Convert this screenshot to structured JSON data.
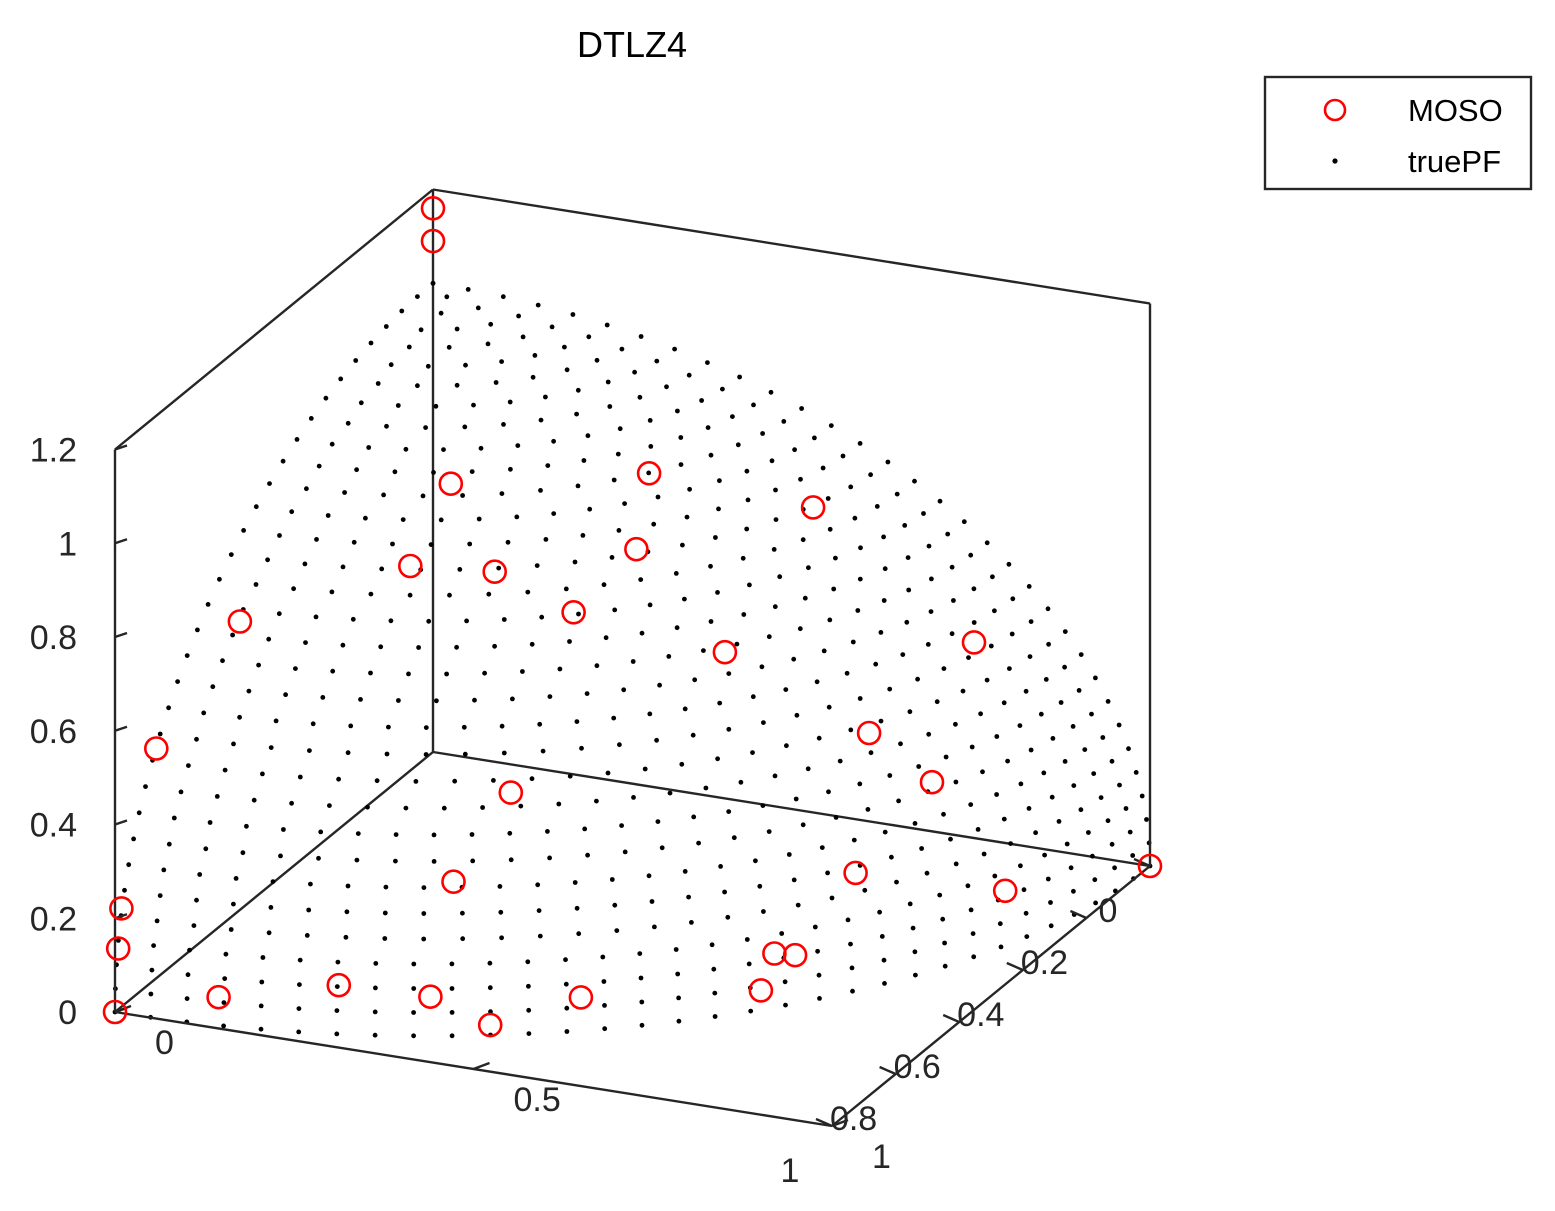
{
  "chart_data": {
    "type": "scatter",
    "title": "DTLZ4",
    "axes": {
      "x": {
        "range": [
          0,
          1
        ],
        "ticks": [
          0,
          0.2,
          0.4,
          0.6,
          0.8,
          1
        ],
        "tick_labels": [
          "0",
          "0.2",
          "0.4",
          "0.6",
          "0.8",
          "1"
        ]
      },
      "y": {
        "range": [
          0,
          1
        ],
        "ticks": [
          0,
          0.5,
          1
        ],
        "tick_labels": [
          "0",
          "0.5",
          "1"
        ]
      },
      "z": {
        "range": [
          0,
          1.2
        ],
        "ticks": [
          0,
          0.2,
          0.4,
          0.6,
          0.8,
          1,
          1.2
        ],
        "tick_labels": [
          "0",
          "0.2",
          "0.4",
          "0.6",
          "0.8",
          "1",
          "1.2"
        ]
      }
    },
    "legend": {
      "placement": "top-right",
      "entries": [
        "MOSO",
        "truePF"
      ]
    },
    "colors": {
      "MOSO": "#ff0000",
      "truePF": "#000000",
      "axes": "#262626"
    },
    "grid": false,
    "series": [
      {
        "name": "MOSO",
        "marker": "open-circle",
        "points": [
          [
            0,
            0,
            1.16
          ],
          [
            0,
            0,
            1.09
          ],
          [
            0.17,
            0.83,
            0.53
          ],
          [
            0.18,
            0.61,
            0.77
          ],
          [
            0.48,
            0.62,
            0.63
          ],
          [
            0.82,
            0.57,
            0.07
          ],
          [
            0,
            1,
            0
          ],
          [
            0.87,
            0,
            0.49
          ],
          [
            0.98,
            0,
            0.21
          ],
          [
            0.99,
            0,
            0.13
          ],
          [
            1,
            0,
            0
          ],
          [
            0.29,
            0.43,
            0.86
          ],
          [
            0.55,
            0.44,
            0.71
          ],
          [
            0.42,
            0.47,
            0.78
          ],
          [
            0.55,
            0.33,
            0.77
          ],
          [
            0.44,
            0.22,
            0.87
          ],
          [
            0.59,
            0.23,
            0.78
          ],
          [
            0.72,
            0.05,
            0.69
          ],
          [
            0.37,
            0.86,
            0.35
          ],
          [
            0.41,
            0.79,
            0.46
          ],
          [
            0.32,
            0.94,
            0.11
          ],
          [
            0.52,
            0.82,
            0.23
          ],
          [
            0.62,
            0.78,
            0.1
          ],
          [
            0.66,
            0.75,
            0.04
          ],
          [
            0.64,
            0.76,
            0.11
          ],
          [
            0.91,
            0.4,
            0.08
          ],
          [
            0.99,
            0.14,
            0.06
          ],
          [
            0.86,
            0.41,
            0.3
          ],
          [
            0.88,
            0.47,
            0.02
          ],
          [
            0.77,
            0.45,
            0.45
          ],
          [
            0.95,
            0.29,
            0.1
          ]
        ]
      },
      {
        "name": "truePF",
        "marker": "dot",
        "surface": "unit-sphere-octant"
      }
    ]
  }
}
